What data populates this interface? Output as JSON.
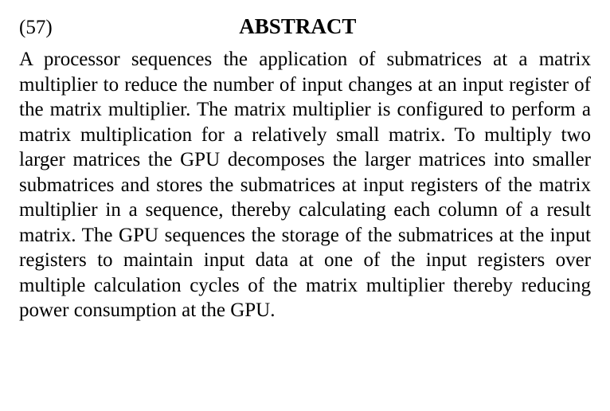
{
  "abstract": {
    "section_number": "(57)",
    "title": "ABSTRACT",
    "body": "A processor sequences the application of submatrices at a matrix multiplier to reduce the number of input changes at an input register of the matrix multiplier. The matrix multiplier is configured to perform a matrix multiplication for a relatively small matrix. To multiply two larger matrices the GPU decomposes the larger matrices into smaller submatrices and stores the submatrices at input registers of the matrix multiplier in a sequence, thereby calculating each column of a result matrix. The GPU sequences the storage of the submatrices at the input registers to maintain input data at one of the input registers over multiple calculation cycles of the matrix multiplier thereby reducing power consumption at the GPU."
  },
  "styling": {
    "background_color": "#ffffff",
    "text_color": "#000000",
    "font_family": "Times New Roman",
    "section_number_fontsize": 25,
    "title_fontsize": 27,
    "title_fontweight": "bold",
    "body_fontsize": 25,
    "body_line_height": 1.26,
    "body_text_align": "justify"
  }
}
